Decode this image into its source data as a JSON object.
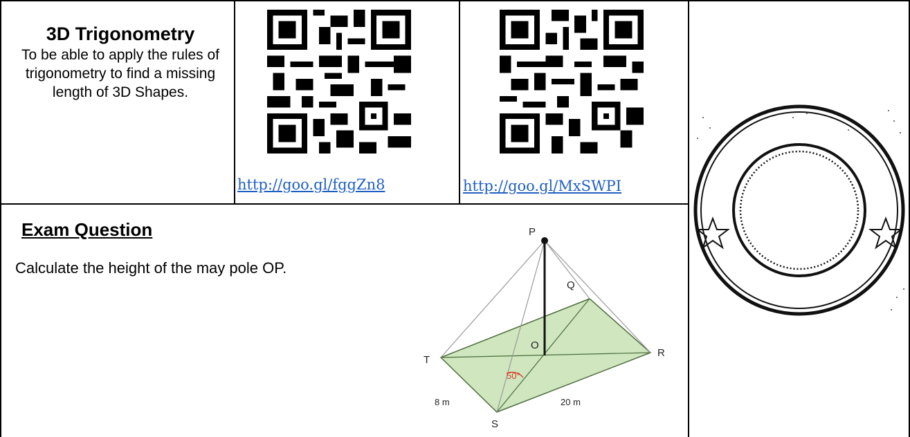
{
  "header": {
    "title": "3D Trigonometry",
    "objective": "To be able to apply the rules of trigonometry to find a missing length of 3D Shapes."
  },
  "resources": [
    {
      "link_text": "http://goo.gl/fggZn8"
    },
    {
      "link_text": "http://goo.gl/MxSWPI"
    }
  ],
  "exam": {
    "heading": "Exam Question",
    "question": "Calculate the height of the may pole OP."
  },
  "diagram": {
    "labels": {
      "P": "P",
      "Q": "Q",
      "R": "R",
      "S": "S",
      "T": "T",
      "O": "O",
      "angle": "50°",
      "side_ts": "8 m",
      "side_sr": "20 m"
    },
    "colors": {
      "base_fill": "#cfe6bf",
      "angle_color": "#d93a2a"
    }
  },
  "colors": {
    "link": "#1f5fc2",
    "border": "#000000"
  }
}
